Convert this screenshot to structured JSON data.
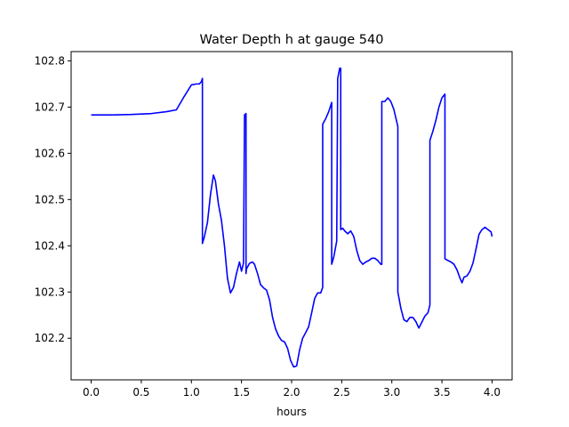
{
  "chart_data": {
    "type": "line",
    "title": "Water Depth h at gauge 540",
    "xlabel": "hours",
    "ylabel": "",
    "xlim": [
      -0.2,
      4.2
    ],
    "ylim": [
      102.11,
      102.82
    ],
    "xticks": [
      0.0,
      0.5,
      1.0,
      1.5,
      2.0,
      2.5,
      3.0,
      3.5,
      4.0
    ],
    "xtick_labels": [
      "0.0",
      "0.5",
      "1.0",
      "1.5",
      "2.0",
      "2.5",
      "3.0",
      "3.5",
      "4.0"
    ],
    "yticks": [
      102.2,
      102.3,
      102.4,
      102.5,
      102.6,
      102.7,
      102.8
    ],
    "ytick_labels": [
      "102.2",
      "102.3",
      "102.4",
      "102.5",
      "102.6",
      "102.7",
      "102.8"
    ],
    "grid": false,
    "legend": "none",
    "series": [
      {
        "color": "#0000ff",
        "x": [
          0.0,
          0.2,
          0.4,
          0.6,
          0.75,
          0.85,
          0.92,
          1.0,
          1.05,
          1.08,
          1.1,
          1.11,
          1.11,
          1.13,
          1.16,
          1.19,
          1.22,
          1.24,
          1.27,
          1.3,
          1.33,
          1.36,
          1.39,
          1.42,
          1.45,
          1.48,
          1.5,
          1.52,
          1.53,
          1.53,
          1.545,
          1.545,
          1.55,
          1.58,
          1.61,
          1.63,
          1.66,
          1.69,
          1.72,
          1.75,
          1.78,
          1.81,
          1.84,
          1.87,
          1.9,
          1.93,
          1.96,
          1.99,
          2.02,
          2.05,
          2.08,
          2.11,
          2.14,
          2.17,
          2.2,
          2.23,
          2.26,
          2.29,
          2.31,
          2.31,
          2.34,
          2.37,
          2.4,
          2.4,
          2.42,
          2.45,
          2.46,
          2.46,
          2.48,
          2.48,
          2.49,
          2.49,
          2.51,
          2.53,
          2.56,
          2.59,
          2.62,
          2.65,
          2.68,
          2.71,
          2.74,
          2.77,
          2.8,
          2.83,
          2.86,
          2.89,
          2.9,
          2.9,
          2.93,
          2.96,
          2.99,
          3.02,
          3.06,
          3.06,
          3.09,
          3.12,
          3.15,
          3.18,
          3.21,
          3.24,
          3.27,
          3.3,
          3.33,
          3.36,
          3.38,
          3.38,
          3.41,
          3.44,
          3.47,
          3.5,
          3.53,
          3.53,
          3.56,
          3.59,
          3.62,
          3.65,
          3.68,
          3.7,
          3.72,
          3.75,
          3.78,
          3.81,
          3.84,
          3.87,
          3.9,
          3.93,
          3.96,
          3.99,
          4.0
        ],
        "y": [
          102.683,
          102.683,
          102.684,
          102.686,
          102.69,
          102.694,
          102.72,
          102.748,
          102.75,
          102.75,
          102.755,
          102.762,
          102.405,
          102.42,
          102.45,
          102.51,
          102.553,
          102.54,
          102.49,
          102.455,
          102.4,
          102.33,
          102.298,
          102.31,
          102.34,
          102.365,
          102.345,
          102.363,
          102.683,
          102.683,
          102.686,
          102.34,
          102.35,
          102.362,
          102.365,
          102.36,
          102.34,
          102.316,
          102.309,
          102.304,
          102.283,
          102.245,
          102.22,
          102.205,
          102.195,
          102.192,
          102.178,
          102.152,
          102.138,
          102.14,
          102.175,
          102.2,
          102.212,
          102.225,
          102.255,
          102.286,
          102.298,
          102.298,
          102.31,
          102.663,
          102.675,
          102.69,
          102.71,
          102.36,
          102.375,
          102.41,
          102.762,
          102.762,
          102.784,
          102.784,
          102.784,
          102.435,
          102.438,
          102.432,
          102.426,
          102.432,
          102.42,
          102.39,
          102.368,
          102.36,
          102.365,
          102.368,
          102.373,
          102.373,
          102.368,
          102.36,
          102.36,
          102.712,
          102.712,
          102.72,
          102.712,
          102.695,
          102.658,
          102.3,
          102.265,
          102.24,
          102.236,
          102.245,
          102.245,
          102.236,
          102.222,
          102.235,
          102.248,
          102.255,
          102.272,
          102.628,
          102.648,
          102.672,
          102.7,
          102.72,
          102.728,
          102.372,
          102.368,
          102.365,
          102.36,
          102.348,
          102.33,
          102.32,
          102.332,
          102.335,
          102.345,
          102.363,
          102.393,
          102.425,
          102.435,
          102.44,
          102.435,
          102.43,
          102.42
        ]
      }
    ]
  }
}
